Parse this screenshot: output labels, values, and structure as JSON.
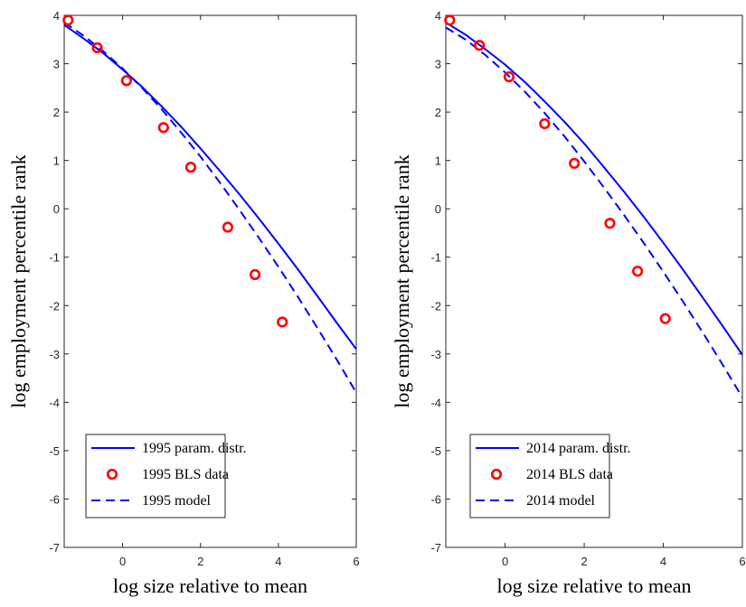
{
  "colors": {
    "line": "#0000ff",
    "marker": "#ff0000",
    "axis": "#262626",
    "legend_edge": "#262626",
    "background": "#ffffff"
  },
  "chart_data": [
    {
      "type": "line",
      "title": "",
      "xlabel": "log size relative to mean",
      "ylabel": "log employment percentile rank",
      "xlim": [
        -1.5,
        6
      ],
      "ylim": [
        -7,
        4
      ],
      "xticks": [
        0,
        2,
        4,
        6
      ],
      "yticks": [
        -7,
        -6,
        -5,
        -4,
        -3,
        -2,
        -1,
        0,
        1,
        2,
        3,
        4
      ],
      "xtick_labels": [
        "0",
        "2",
        "4",
        "6"
      ],
      "ytick_labels": [
        "-7",
        "-6",
        "-5",
        "-4",
        "-3",
        "-2",
        "-1",
        "0",
        "1",
        "2",
        "3",
        "4"
      ],
      "grid": false,
      "legend_position": "bottom-left",
      "series": [
        {
          "name": "1995 param. distr.",
          "style": "solid",
          "x": [
            -1.5,
            -1.0,
            -0.5,
            0.0,
            0.5,
            1.0,
            1.5,
            2.0,
            2.5,
            3.0,
            3.5,
            4.0,
            4.5,
            5.0,
            5.5,
            6.0
          ],
          "y": [
            3.8,
            3.52,
            3.22,
            2.88,
            2.52,
            2.12,
            1.7,
            1.25,
            0.78,
            0.3,
            -0.2,
            -0.72,
            -1.25,
            -1.8,
            -2.36,
            -2.9
          ]
        },
        {
          "name": "1995 BLS data",
          "style": "marker",
          "x": [
            -1.4,
            -0.65,
            0.1,
            1.05,
            1.75,
            2.7,
            3.4,
            4.1
          ],
          "y": [
            3.9,
            3.33,
            2.65,
            1.68,
            0.86,
            -0.38,
            -1.36,
            -2.34
          ]
        },
        {
          "name": "1995 model",
          "style": "dashed",
          "x": [
            -1.5,
            -1.0,
            -0.5,
            0.0,
            0.5,
            1.0,
            1.5,
            2.0,
            2.5,
            3.0,
            3.5,
            4.0,
            4.5,
            5.0,
            5.5,
            6.0
          ],
          "y": [
            3.85,
            3.58,
            3.26,
            2.9,
            2.5,
            2.06,
            1.58,
            1.08,
            0.54,
            -0.02,
            -0.6,
            -1.2,
            -1.82,
            -2.46,
            -3.12,
            -3.8
          ]
        }
      ]
    },
    {
      "type": "line",
      "title": "",
      "xlabel": "log size relative to mean",
      "ylabel": "log employment percentile rank",
      "xlim": [
        -1.5,
        6
      ],
      "ylim": [
        -7,
        4
      ],
      "xticks": [
        0,
        2,
        4,
        6
      ],
      "yticks": [
        -7,
        -6,
        -5,
        -4,
        -3,
        -2,
        -1,
        0,
        1,
        2,
        3,
        4
      ],
      "xtick_labels": [
        "0",
        "2",
        "4",
        "6"
      ],
      "ytick_labels": [
        "-7",
        "-6",
        "-5",
        "-4",
        "-3",
        "-2",
        "-1",
        "0",
        "1",
        "2",
        "3",
        "4"
      ],
      "grid": false,
      "legend_position": "bottom-left",
      "series": [
        {
          "name": "2014 param. distr.",
          "style": "solid",
          "x": [
            -1.5,
            -1.0,
            -0.5,
            0.0,
            0.5,
            1.0,
            1.5,
            2.0,
            2.5,
            3.0,
            3.5,
            4.0,
            4.5,
            5.0,
            5.5,
            6.0
          ],
          "y": [
            3.85,
            3.6,
            3.3,
            2.98,
            2.62,
            2.22,
            1.8,
            1.35,
            0.86,
            0.36,
            -0.16,
            -0.7,
            -1.26,
            -1.84,
            -2.42,
            -3.02
          ]
        },
        {
          "name": "2014 BLS data",
          "style": "marker",
          "x": [
            -1.4,
            -0.65,
            0.1,
            1.0,
            1.75,
            2.65,
            3.35,
            4.05
          ],
          "y": [
            3.9,
            3.38,
            2.73,
            1.76,
            0.94,
            -0.3,
            -1.29,
            -2.27
          ]
        },
        {
          "name": "2014 model",
          "style": "dashed",
          "x": [
            -1.5,
            -1.0,
            -0.5,
            0.0,
            0.5,
            1.0,
            1.5,
            2.0,
            2.5,
            3.0,
            3.5,
            4.0,
            4.5,
            5.0,
            5.5,
            6.0
          ],
          "y": [
            3.75,
            3.5,
            3.18,
            2.82,
            2.42,
            1.98,
            1.5,
            0.98,
            0.44,
            -0.12,
            -0.7,
            -1.3,
            -1.92,
            -2.56,
            -3.22,
            -3.9
          ]
        }
      ]
    }
  ]
}
